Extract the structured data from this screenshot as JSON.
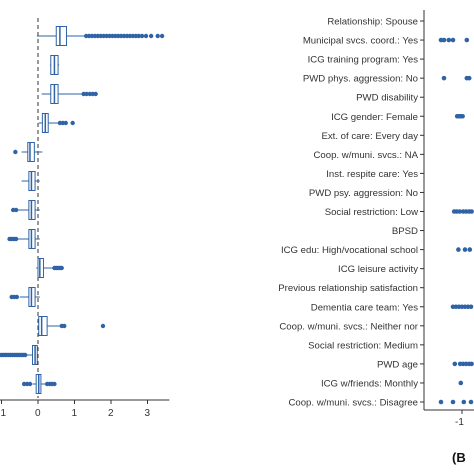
{
  "panel_b_letter": "(B",
  "colors": {
    "point": "#2f63a6",
    "box_fill": "#ffffff",
    "box_stroke": "#2f63a6",
    "axis": "#333333",
    "ref_line": "#333333"
  },
  "chart_data": [
    {
      "type": "boxplot",
      "orientation": "horizontal",
      "panel": "A (partially visible, cropped at left)",
      "x_ticks": [
        "1",
        "0",
        "1",
        "2",
        "3"
      ],
      "x_tick_values": [
        -1,
        0,
        1,
        2,
        3
      ],
      "xlim": [
        -1.1,
        3.6
      ],
      "ref_line_x": 0,
      "category_labels_visible": false,
      "boxes": [
        {
          "q1": 0.5,
          "median": 0.6,
          "q3": 0.78,
          "whisker_low": -0.03,
          "whisker_high": 1.3,
          "outliers": [
            1.32,
            1.4,
            1.48,
            1.56,
            1.64,
            1.72,
            1.8,
            1.88,
            1.96,
            2.04,
            2.12,
            2.2,
            2.28,
            2.36,
            2.44,
            2.52,
            2.6,
            2.68,
            2.76,
            2.85,
            2.96,
            3.1,
            3.28,
            3.4
          ]
        },
        {
          "q1": 0.35,
          "median": 0.45,
          "q3": 0.55,
          "whisker_low": 0.33,
          "whisker_high": 0.58,
          "outliers": []
        },
        {
          "q1": 0.35,
          "median": 0.45,
          "q3": 0.55,
          "whisker_low": 0.1,
          "whisker_high": 1.2,
          "outliers": [
            1.25,
            1.33,
            1.42,
            1.5,
            1.58
          ]
        },
        {
          "q1": 0.12,
          "median": 0.2,
          "q3": 0.28,
          "whisker_low": 0.02,
          "whisker_high": 0.55,
          "outliers": [
            0.6,
            0.68,
            0.76,
            0.95
          ]
        },
        {
          "q1": -0.28,
          "median": -0.22,
          "q3": -0.1,
          "whisker_low": -0.45,
          "whisker_high": 0.12,
          "outliers": [
            -0.62
          ]
        },
        {
          "q1": -0.25,
          "median": -0.18,
          "q3": -0.08,
          "whisker_low": -0.45,
          "whisker_high": 0.05,
          "outliers": []
        },
        {
          "q1": -0.25,
          "median": -0.18,
          "q3": -0.08,
          "whisker_low": -0.55,
          "whisker_high": 0.05,
          "outliers": [
            -0.6,
            -0.68
          ]
        },
        {
          "q1": -0.25,
          "median": -0.18,
          "q3": -0.08,
          "whisker_low": -0.55,
          "whisker_high": 0.05,
          "outliers": [
            -0.6,
            -0.66,
            -0.72,
            -0.78
          ]
        },
        {
          "q1": 0.0,
          "median": 0.05,
          "q3": 0.15,
          "whisker_low": -0.05,
          "whisker_high": 0.4,
          "outliers": [
            0.45,
            0.5,
            0.55,
            0.6,
            0.65
          ]
        },
        {
          "q1": -0.25,
          "median": -0.18,
          "q3": -0.08,
          "whisker_low": -0.5,
          "whisker_high": 0.05,
          "outliers": [
            -0.58,
            -0.65,
            -0.72
          ]
        },
        {
          "q1": 0.02,
          "median": 0.1,
          "q3": 0.25,
          "whisker_low": -0.02,
          "whisker_high": 0.6,
          "outliers": [
            0.65,
            0.72,
            1.78
          ]
        },
        {
          "q1": -0.15,
          "median": -0.08,
          "q3": -0.02,
          "whisker_low": -0.3,
          "whisker_high": 0.0,
          "outliers": [
            -0.35,
            -0.4,
            -0.45,
            -0.5,
            -0.55,
            -0.6,
            -0.65,
            -0.7,
            -0.75,
            -0.8,
            -0.85,
            -0.9,
            -0.95,
            -1.0,
            -1.05,
            -1.1
          ]
        },
        {
          "q1": -0.05,
          "median": 0.02,
          "q3": 0.08,
          "whisker_low": -0.15,
          "whisker_high": 0.2,
          "outliers": [
            -0.38,
            -0.3,
            -0.22,
            0.25,
            0.32,
            0.38,
            0.45
          ]
        }
      ]
    },
    {
      "type": "scatter",
      "orientation": "horizontal",
      "panel": "B (partially visible, cropped at right)",
      "x_ticks": [
        "-1"
      ],
      "x_tick_values": [
        -1
      ],
      "xlim": [
        -1.45,
        -0.8
      ],
      "categories": [
        "Relationship: Spouse",
        "Municipal svcs. coord.: Yes",
        "ICG training program: Yes",
        "PWD phys. aggression: No",
        "PWD disability",
        "ICG gender: Female",
        "Ext. of care: Every day",
        "Coop. w/muni. svcs.: NA",
        "Inst. respite care: Yes",
        "PWD psy. aggression: No",
        "Social restriction: Low",
        "BPSD",
        "ICG edu: High/vocational school",
        "ICG leisure activity",
        "Previous relationship satisfaction",
        "Dementia care team: Yes",
        "Coop. w/muni. svcs.: Neither nor",
        "Social restriction: Medium",
        "PWD age",
        "ICG w/friends: Monthly",
        "Coop. w/muni. svcs.: Disagree"
      ],
      "points": [
        {
          "category": "Municipal svcs. coord.: Yes",
          "x": [
            -1.35,
            -1.3,
            -1.22,
            -1.15,
            -0.92
          ]
        },
        {
          "category": "PWD phys. aggression: No",
          "x": [
            -1.3,
            -0.92,
            -0.88
          ]
        },
        {
          "category": "ICG gender: Female",
          "x": [
            -1.08,
            -1.05,
            -1.02,
            -0.99
          ]
        },
        {
          "category": "Social restriction: Low",
          "x": [
            -1.13,
            -1.09,
            -1.04,
            -0.98,
            -0.93,
            -0.88,
            -0.84
          ]
        },
        {
          "category": "ICG edu: High/vocational school",
          "x": [
            -1.06,
            -0.95,
            -0.87
          ]
        },
        {
          "category": "Dementia care team: Yes",
          "x": [
            -1.15,
            -1.1,
            -1.05,
            -1.0,
            -0.95,
            -0.9,
            -0.85
          ]
        },
        {
          "category": "PWD age",
          "x": [
            -1.12,
            -1.03,
            -0.98,
            -0.93,
            -0.88,
            -0.84
          ]
        },
        {
          "category": "ICG w/friends: Monthly",
          "x": [
            -1.02
          ]
        },
        {
          "category": "Coop. w/muni. svcs.: Disagree",
          "x": [
            -1.35,
            -1.15,
            -0.97,
            -0.85
          ]
        }
      ]
    }
  ]
}
